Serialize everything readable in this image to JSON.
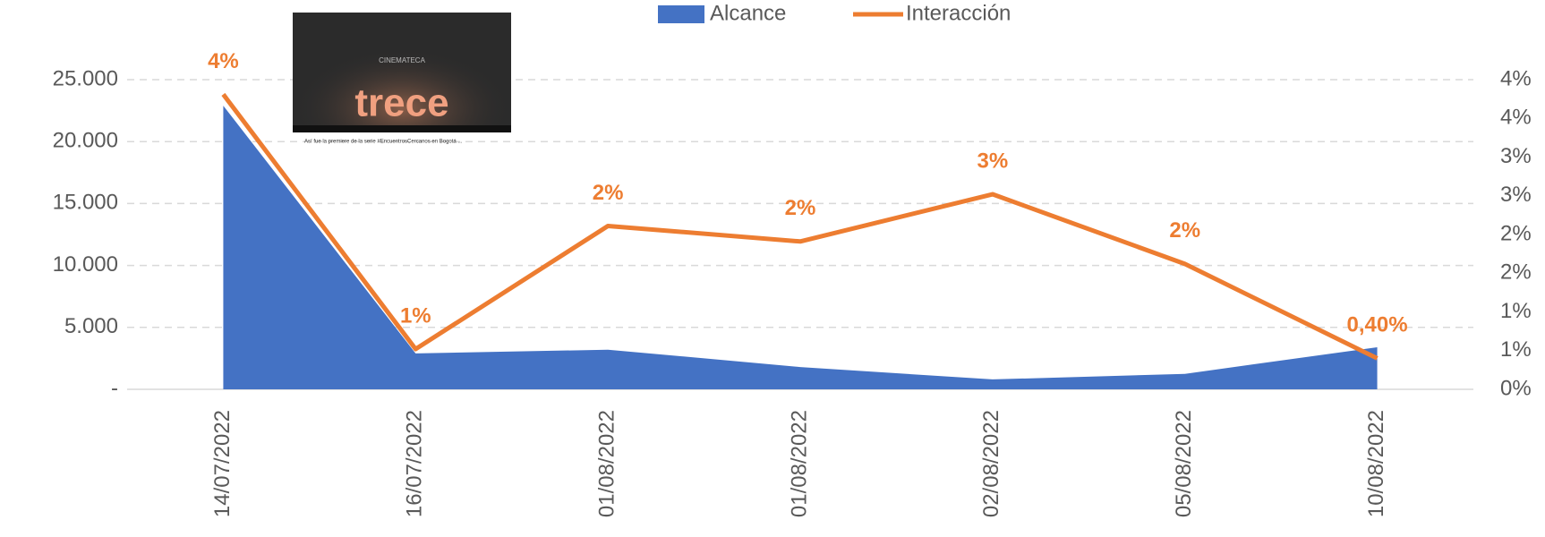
{
  "chart_data": {
    "type": "area-line",
    "categories": [
      "14/07/2022",
      "16/07/2022",
      "01/08/2022",
      "01/08/2022",
      "02/08/2022",
      "05/08/2022",
      "10/08/2022"
    ],
    "series": [
      {
        "name": "Alcance",
        "color": "#4472c4",
        "type": "area",
        "values": [
          22900,
          2900,
          3200,
          1800,
          800,
          1250,
          3400
        ]
      },
      {
        "name": "Interacción",
        "color": "#ed7d31",
        "type": "line",
        "axis": "y2",
        "values": [
          3.81,
          0.52,
          2.11,
          1.91,
          2.52,
          1.62,
          0.4
        ],
        "value_labels": [
          "4%",
          "1%",
          "2%",
          "2%",
          "3%",
          "2%",
          "0,40%"
        ]
      }
    ],
    "ylim": [
      0,
      25000
    ],
    "yticks": [
      {
        "value": 0,
        "label": "-"
      },
      {
        "value": 5000,
        "label": "5.000"
      },
      {
        "value": 10000,
        "label": "10.000"
      },
      {
        "value": 15000,
        "label": "15.000"
      },
      {
        "value": 20000,
        "label": "20.000"
      },
      {
        "value": 25000,
        "label": "25.000"
      }
    ],
    "y2lim": [
      0,
      4
    ],
    "y2ticks": [
      {
        "value": 0,
        "label": "0%"
      },
      {
        "value": 0.5,
        "label": "1%"
      },
      {
        "value": 1,
        "label": "1%"
      },
      {
        "value": 1.5,
        "label": "2%"
      },
      {
        "value": 2,
        "label": "2%"
      },
      {
        "value": 2.5,
        "label": "3%"
      },
      {
        "value": 3,
        "label": "3%"
      },
      {
        "value": 3.5,
        "label": "4%"
      },
      {
        "value": 4,
        "label": "4%"
      }
    ],
    "grid": true,
    "legend": "top"
  },
  "thumbnail": {
    "logo": "trece",
    "venue": "CINEMATECA",
    "caption": "Así fue la premiere de la serie #EncuentrosCercanos en Bogotá ..."
  }
}
